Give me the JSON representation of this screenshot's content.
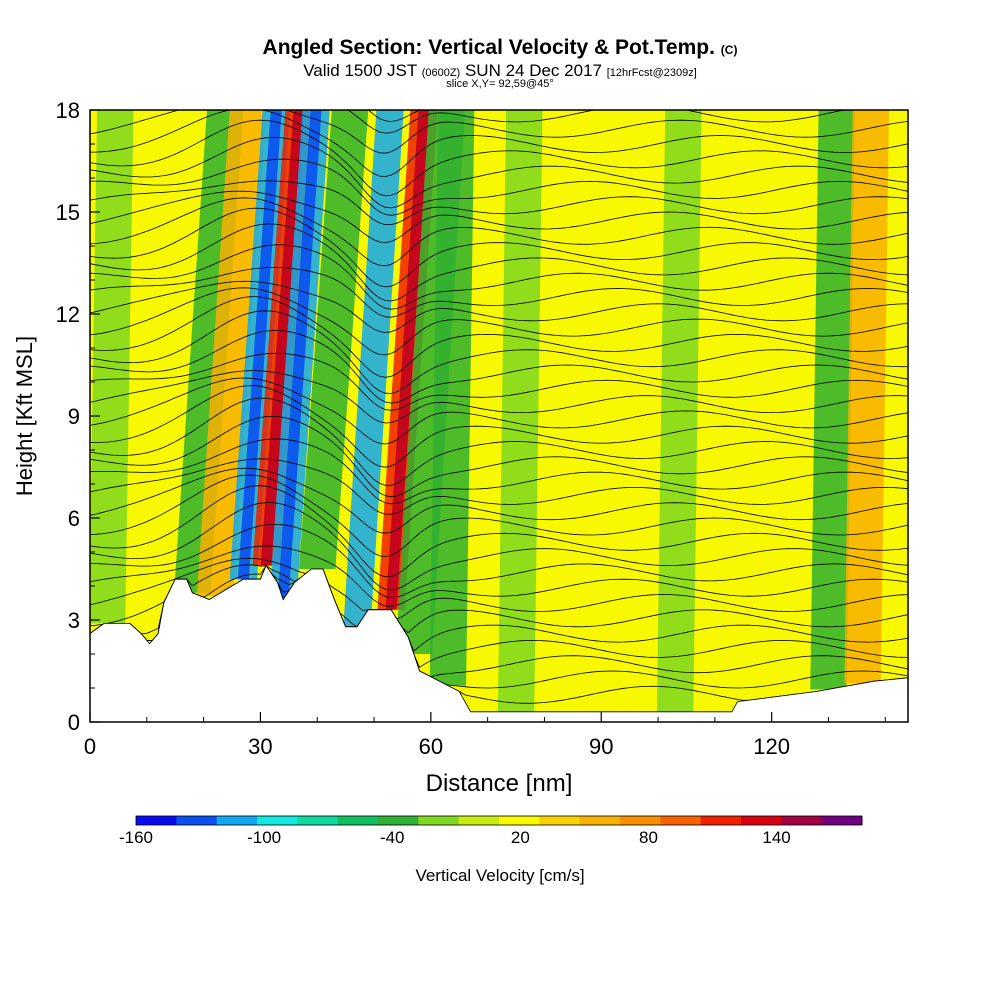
{
  "header": {
    "title_main": "Angled Section: Vertical Velocity & Pot.Temp.",
    "title_units": "(C)",
    "valid_prefix": "Valid 1500 JST",
    "valid_zulu": "(0600Z)",
    "valid_date": "SUN 24 Dec 2017",
    "forecast": "[12hrFcst@2309z]",
    "slice": "slice X,Y= 92,59@45°"
  },
  "colorbar": {
    "title": "Vertical Velocity [cm/s]",
    "labels": [
      "-160",
      "-100",
      "-40",
      "20",
      "80",
      "140"
    ],
    "colors": [
      "#0a0af0",
      "#0a50f0",
      "#10a8f0",
      "#10e8e0",
      "#10d8a0",
      "#10c060",
      "#30b030",
      "#80d820",
      "#c8ec10",
      "#f8f800",
      "#f8d000",
      "#f8b000",
      "#f89000",
      "#f86000",
      "#f02000",
      "#d80010",
      "#a00040",
      "#700080"
    ]
  },
  "chart_data": {
    "type": "heatmap",
    "title": "Angled Section: Vertical Velocity & Pot.Temp.",
    "xlabel": "Distance [nm]",
    "ylabel": "Height [Kft MSL]",
    "xlim": [
      0,
      144
    ],
    "ylim": [
      0,
      18
    ],
    "x_ticks": [
      "0",
      "30",
      "60",
      "90",
      "120"
    ],
    "y_ticks": [
      "0",
      "3",
      "6",
      "9",
      "12",
      "15",
      "18"
    ],
    "shading": "Vertical Velocity [cm/s]",
    "shading_range": [
      -160,
      180
    ],
    "contours": "Potential temperature (C)",
    "colors": {
      "background": "#f8f800",
      "moderate_sink": "#80d820",
      "strong_sink": "#30b030",
      "weak_rise": "#f8b000",
      "strong_rise": "#f02000",
      "terrain": "#ffffff"
    },
    "velocity_bands": [
      {
        "x_center": 3,
        "peak": -40
      },
      {
        "x_center": 18,
        "peak": -70
      },
      {
        "x_center": 22,
        "peak": 90
      },
      {
        "x_center": 27,
        "peak": -130
      },
      {
        "x_center": 31,
        "peak": 160
      },
      {
        "x_center": 34,
        "peak": -160
      },
      {
        "x_center": 40,
        "peak": -60
      },
      {
        "x_center": 47,
        "peak": -110
      },
      {
        "x_center": 53,
        "peak": 130
      },
      {
        "x_center": 57,
        "peak": -70
      },
      {
        "x_center": 63,
        "peak": -50
      },
      {
        "x_center": 75,
        "peak": -25
      },
      {
        "x_center": 103,
        "peak": -30
      },
      {
        "x_center": 130,
        "peak": -50
      },
      {
        "x_center": 136,
        "peak": 60
      }
    ],
    "terrain_kft": [
      [
        0,
        2.6
      ],
      [
        2.5,
        2.9
      ],
      [
        7,
        2.9
      ],
      [
        9,
        2.6
      ],
      [
        10.5,
        2.3
      ],
      [
        12,
        2.6
      ],
      [
        13,
        3.5
      ],
      [
        15,
        4.2
      ],
      [
        17,
        4.2
      ],
      [
        18,
        3.8
      ],
      [
        21,
        3.6
      ],
      [
        24,
        3.9
      ],
      [
        27,
        4.2
      ],
      [
        30,
        4.2
      ],
      [
        31,
        4.6
      ],
      [
        33,
        4.1
      ],
      [
        34,
        3.6
      ],
      [
        36,
        4.1
      ],
      [
        39,
        4.5
      ],
      [
        41,
        4.5
      ],
      [
        43,
        3.6
      ],
      [
        45,
        2.8
      ],
      [
        47,
        2.8
      ],
      [
        49,
        3.3
      ],
      [
        53,
        3.3
      ],
      [
        56,
        2.5
      ],
      [
        58,
        1.5
      ],
      [
        65,
        0.9
      ],
      [
        67,
        0.3
      ],
      [
        113,
        0.3
      ],
      [
        114,
        0.6
      ],
      [
        128,
        0.9
      ],
      [
        138,
        1.2
      ],
      [
        144,
        1.3
      ]
    ],
    "isentrope_count": 40
  },
  "axis": {
    "xlabel": "Distance [nm]",
    "ylabel": "Height [Kft MSL]",
    "x_ticks": [
      "0",
      "30",
      "60",
      "90",
      "120"
    ],
    "y_ticks": [
      "0",
      "3",
      "6",
      "9",
      "12",
      "15",
      "18"
    ]
  }
}
